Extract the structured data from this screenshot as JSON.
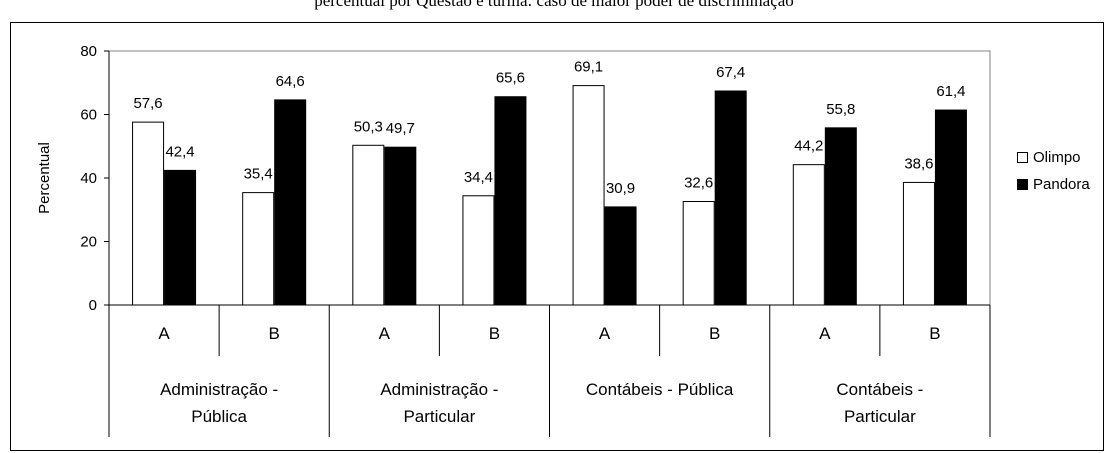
{
  "title": "percentual por Questão e turma: caso de maior poder de discriminação",
  "chart_data": {
    "type": "bar",
    "ylabel": "Percentual",
    "ylim": [
      0,
      80
    ],
    "yticks": [
      0,
      20,
      40,
      60,
      80
    ],
    "groups": [
      {
        "label": "Administração - Pública",
        "lines": [
          "Administração -",
          "Pública"
        ],
        "categories": [
          "A",
          "B"
        ]
      },
      {
        "label": "Administração - Particular",
        "lines": [
          "Administração -",
          "Particular"
        ],
        "categories": [
          "A",
          "B"
        ]
      },
      {
        "label": "Contábeis - Pública",
        "lines": [
          "Contábeis - Pública"
        ],
        "categories": [
          "A",
          "B"
        ]
      },
      {
        "label": "Contábeis - Particular",
        "lines": [
          "Contábeis -",
          "Particular"
        ],
        "categories": [
          "A",
          "B"
        ]
      }
    ],
    "series": [
      {
        "name": "Olimpo",
        "color": "#ffffff",
        "values": [
          57.6,
          35.4,
          50.3,
          34.4,
          69.1,
          32.6,
          44.2,
          38.6
        ],
        "labels": [
          "57,6",
          "35,4",
          "50,3",
          "34,4",
          "69,1",
          "32,6",
          "44,2",
          "38,6"
        ]
      },
      {
        "name": "Pandora",
        "color": "#000000",
        "values": [
          42.4,
          64.6,
          49.7,
          65.6,
          30.9,
          67.4,
          55.8,
          61.4
        ],
        "labels": [
          "42,4",
          "64,6",
          "49,7",
          "65,6",
          "30,9",
          "67,4",
          "55,8",
          "61,4"
        ]
      }
    ],
    "legend": "right",
    "grid": false
  }
}
